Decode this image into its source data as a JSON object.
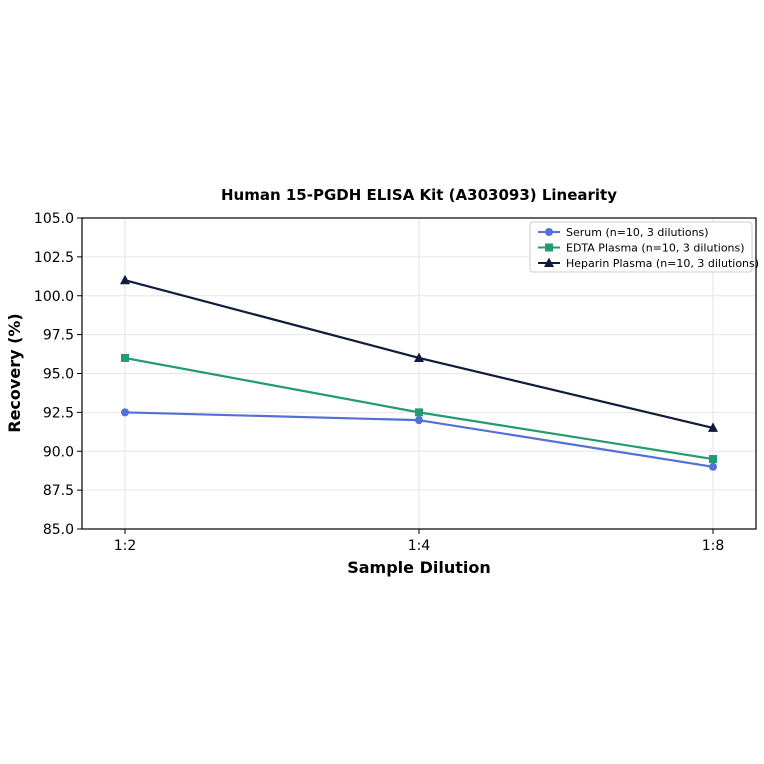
{
  "chart_data": {
    "type": "line",
    "title": "Human 15-PGDH ELISA Kit (A303093) Linearity",
    "xlabel": "Sample Dilution",
    "ylabel": "Recovery (%)",
    "categories": [
      "1:2",
      "1:4",
      "1:8"
    ],
    "ylim": [
      85.0,
      105.0
    ],
    "yticks": [
      "85.0",
      "87.5",
      "90.0",
      "92.5",
      "95.0",
      "97.5",
      "100.0",
      "102.5",
      "105.0"
    ],
    "grid": true,
    "legend_position": "top-right",
    "series": [
      {
        "name": "Serum (n=10, 3 dilutions)",
        "values": [
          92.5,
          92.0,
          89.0
        ],
        "color": "#5470d6",
        "marker": "circle"
      },
      {
        "name": "EDTA Plasma (n=10, 3 dilutions)",
        "values": [
          96.0,
          92.5,
          89.5
        ],
        "color": "#249a72",
        "marker": "square"
      },
      {
        "name": "Heparin Plasma (n=10, 3 dilutions)",
        "values": [
          101.0,
          96.0,
          91.5
        ],
        "color": "#101c3d",
        "marker": "triangle"
      }
    ]
  }
}
